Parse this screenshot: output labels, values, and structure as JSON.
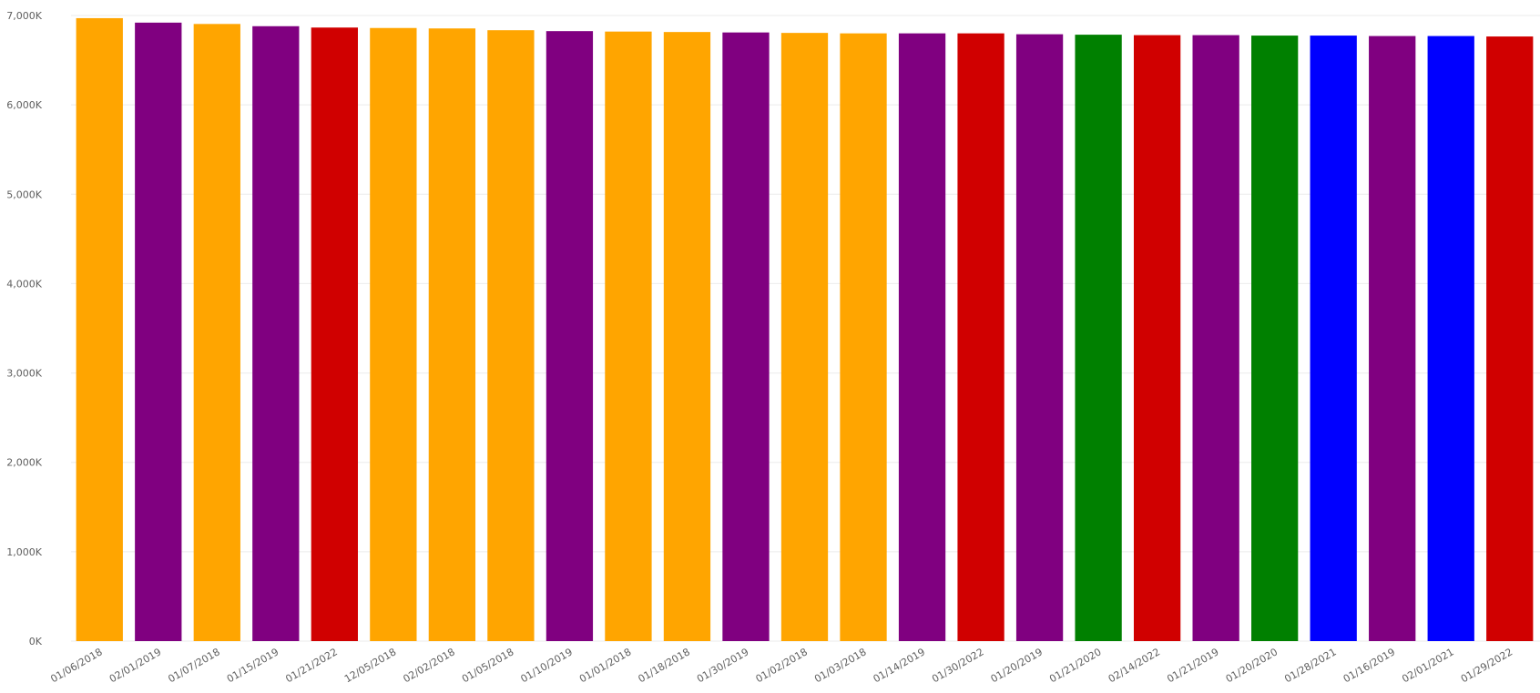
{
  "chart_data": {
    "type": "bar",
    "title": "",
    "xlabel": "",
    "ylabel": "",
    "ylim": [
      0,
      7000
    ],
    "y_ticks": [
      0,
      1000,
      2000,
      3000,
      4000,
      5000,
      6000,
      7000
    ],
    "y_tick_labels": [
      "0K",
      "1,000K",
      "2,000K",
      "3,000K",
      "4,000K",
      "5,000K",
      "6,000K",
      "7,000K"
    ],
    "grid": true,
    "legend": "none",
    "categories": [
      "01/06/2018",
      "02/01/2019",
      "01/07/2018",
      "01/15/2019",
      "01/21/2022",
      "12/05/2018",
      "02/02/2018",
      "01/05/2018",
      "01/10/2019",
      "01/01/2018",
      "01/18/2018",
      "01/30/2019",
      "01/02/2018",
      "01/03/2018",
      "01/14/2019",
      "01/30/2022",
      "01/20/2019",
      "01/21/2020",
      "02/14/2022",
      "01/21/2019",
      "01/20/2020",
      "01/28/2021",
      "01/16/2019",
      "02/01/2021",
      "01/29/2022"
    ],
    "values": [
      6970,
      6920,
      6905,
      6880,
      6865,
      6860,
      6855,
      6835,
      6825,
      6820,
      6815,
      6810,
      6805,
      6800,
      6800,
      6800,
      6790,
      6785,
      6780,
      6780,
      6775,
      6775,
      6770,
      6770,
      6765
    ],
    "colors": [
      "#FFA500",
      "#800080",
      "#FFA500",
      "#800080",
      "#D00000",
      "#FFA500",
      "#FFA500",
      "#FFA500",
      "#800080",
      "#FFA500",
      "#FFA500",
      "#800080",
      "#FFA500",
      "#FFA500",
      "#800080",
      "#D00000",
      "#800080",
      "#008000",
      "#D00000",
      "#800080",
      "#008000",
      "#0000FF",
      "#800080",
      "#0000FF",
      "#D00000"
    ]
  }
}
